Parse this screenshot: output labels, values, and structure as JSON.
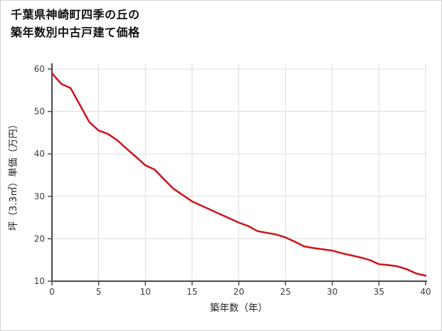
{
  "title": {
    "line1": "千葉県神崎町四季の丘の",
    "line2": "築年数別中古戸建て価格"
  },
  "chart_data": {
    "type": "line",
    "title": "千葉県神崎町四季の丘の築年数別中古戸建て価格",
    "xlabel": "築年数（年）",
    "ylabel": "坪（3.3㎡）単価（万円）",
    "x": [
      0,
      1,
      2,
      3,
      4,
      5,
      6,
      7,
      8,
      9,
      10,
      11,
      12,
      13,
      14,
      15,
      16,
      17,
      18,
      19,
      20,
      21,
      22,
      23,
      24,
      25,
      26,
      27,
      28,
      29,
      30,
      31,
      32,
      33,
      34,
      35,
      36,
      37,
      38,
      39,
      40
    ],
    "y": [
      59,
      56.5,
      55.5,
      51.5,
      47.5,
      45.5,
      44.7,
      43.2,
      41.2,
      39.3,
      37.3,
      36.3,
      34,
      31.8,
      30.3,
      28.8,
      27.8,
      26.8,
      25.8,
      24.8,
      23.8,
      23,
      21.8,
      21.4,
      21,
      20.3,
      19.3,
      18.2,
      17.8,
      17.5,
      17.2,
      16.6,
      16.1,
      15.6,
      15,
      14,
      13.8,
      13.5,
      12.8,
      11.8,
      11.3
    ],
    "xlim": [
      0,
      40
    ],
    "ylim": [
      10,
      60
    ],
    "x_ticks": [
      0,
      5,
      10,
      15,
      20,
      25,
      30,
      35,
      40
    ],
    "y_ticks": [
      10,
      20,
      30,
      40,
      50,
      60
    ],
    "grid": true,
    "legend": "none",
    "line_color": "#cf121b",
    "axis_color": "#4a4a4a",
    "grid_color": "#dcdcdc"
  }
}
